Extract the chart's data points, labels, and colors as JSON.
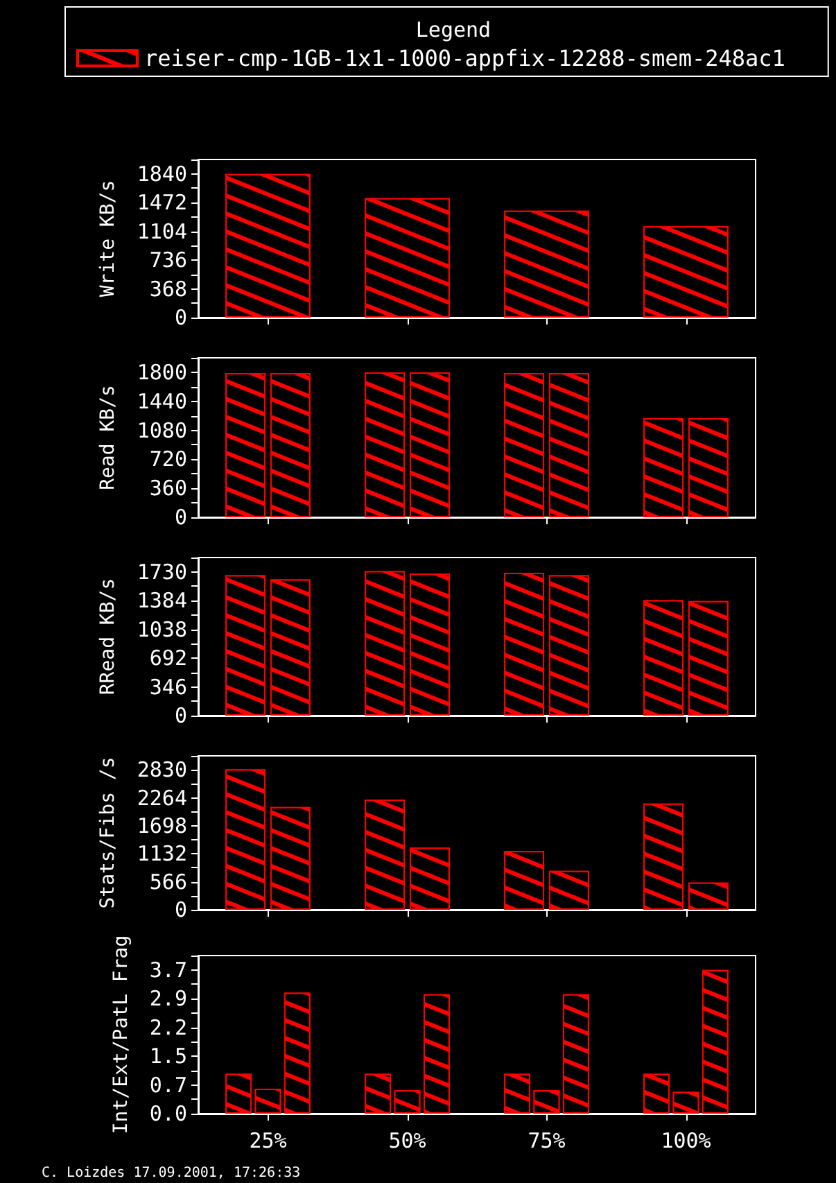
{
  "chart_data": [
    {
      "type": "bar",
      "categories": [
        null,
        null,
        null,
        null
      ],
      "series": [
        {
          "name": "reiser-cmp-1GB-1x1-1000-appfix-12288-smem-248ac1",
          "color": "#ff0000",
          "values": [
            1840,
            1530,
            1370,
            1170
          ]
        }
      ],
      "ylabel": "Write KB/s",
      "ylim": [
        0,
        2024
      ],
      "yticks": [
        0,
        {
          "value": 184,
          "label": null
        },
        368,
        {
          "value": 552,
          "label": null
        },
        736,
        {
          "value": 920,
          "label": null
        },
        1104,
        {
          "value": 1288,
          "label": null
        },
        1472,
        {
          "value": 1656,
          "label": null
        },
        1840,
        {
          "value": 2024,
          "label": null
        }
      ],
      "legend": "top",
      "legend_title": "Legend"
    },
    {
      "type": "bar",
      "categories": [
        null,
        null,
        null,
        null
      ],
      "series": [
        {
          "color": "#ff0000",
          "values": [
            1790,
            1800,
            1790,
            1230
          ]
        },
        {
          "color": "#ff0000",
          "values": [
            1790,
            1800,
            1790,
            1230
          ]
        }
      ],
      "ylabel": "Read KB/s",
      "ylim": [
        0,
        1980
      ],
      "yticks": [
        0,
        {
          "value": 180,
          "label": null
        },
        360,
        {
          "value": 540,
          "label": null
        },
        720,
        {
          "value": 900,
          "label": null
        },
        1080,
        {
          "value": 1260,
          "label": null
        },
        1440,
        {
          "value": 1620,
          "label": null
        },
        1800,
        {
          "value": 1980,
          "label": null
        }
      ]
    },
    {
      "type": "bar",
      "categories": [
        null,
        null,
        null,
        null
      ],
      "series": [
        {
          "color": "#ff0000",
          "values": [
            1690,
            1740,
            1720,
            1390
          ]
        },
        {
          "color": "#ff0000",
          "values": [
            1640,
            1710,
            1690,
            1380
          ]
        }
      ],
      "ylabel": "RRead KB/s",
      "ylim": [
        0,
        1903
      ],
      "yticks": [
        0,
        {
          "value": 173,
          "label": null
        },
        346,
        {
          "value": 519,
          "label": null
        },
        692,
        {
          "value": 865,
          "label": null
        },
        1038,
        {
          "value": 1211,
          "label": null
        },
        1384,
        {
          "value": 1557,
          "label": null
        },
        1730,
        {
          "value": 1903,
          "label": null
        }
      ]
    },
    {
      "type": "bar",
      "categories": [
        null,
        null,
        null,
        null
      ],
      "series": [
        {
          "color": "#ff0000",
          "values": [
            2840,
            2230,
            1190,
            2150
          ]
        },
        {
          "color": "#ff0000",
          "values": [
            2080,
            1260,
            790,
            550
          ]
        }
      ],
      "ylabel": "Stats/Fibs /s",
      "ylim": [
        0,
        3113
      ],
      "yticks": [
        0,
        {
          "value": 283,
          "label": null
        },
        566,
        {
          "value": 849,
          "label": null
        },
        1132,
        {
          "value": 1415,
          "label": null
        },
        1698,
        {
          "value": 1981,
          "label": null
        },
        2264,
        {
          "value": 2547,
          "label": null
        },
        2830,
        {
          "value": 3113,
          "label": null
        }
      ]
    },
    {
      "type": "bar",
      "categories": [
        "25%",
        "50%",
        "75%",
        "100%"
      ],
      "series": [
        {
          "color": "#ff0000",
          "values": [
            1.02,
            1.02,
            1.02,
            1.02
          ]
        },
        {
          "color": "#ff0000",
          "values": [
            0.64,
            0.6,
            0.6,
            0.56
          ]
        },
        {
          "color": "#ff0000",
          "values": [
            3.1,
            3.06,
            3.06,
            3.68
          ]
        }
      ],
      "ylabel": "Int/Ext/PatL Frag",
      "ylim": [
        0,
        4.048
      ],
      "yticks": [
        {
          "value": 0,
          "label": "0.0"
        },
        {
          "value": 0.368,
          "label": null
        },
        {
          "value": 0.736,
          "label": "0.7"
        },
        {
          "value": 1.104,
          "label": null
        },
        {
          "value": 1.472,
          "label": "1.5"
        },
        {
          "value": 1.84,
          "label": null
        },
        {
          "value": 2.208,
          "label": "2.2"
        },
        {
          "value": 2.576,
          "label": null
        },
        {
          "value": 2.944,
          "label": "2.9"
        },
        {
          "value": 3.312,
          "label": null
        },
        {
          "value": 3.68,
          "label": "3.7"
        },
        {
          "value": 4.048,
          "label": null
        }
      ],
      "annotations": [
        "C. Loizdes 17.09.2001, 17:26:33"
      ]
    }
  ]
}
